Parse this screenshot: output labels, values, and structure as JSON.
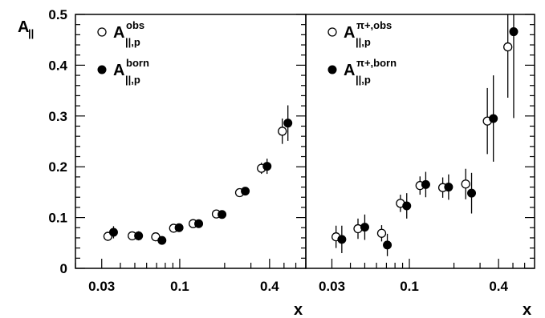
{
  "chart_data": [
    {
      "type": "scatter",
      "panel": "left",
      "title": "",
      "xlabel": "x",
      "ylabel": "A||",
      "x_scale": "log",
      "xlim": [
        0.02,
        0.7
      ],
      "ylim": [
        0,
        0.5
      ],
      "x_ticks": [
        {
          "v": 0.03,
          "label": "0.03"
        },
        {
          "v": 0.1,
          "label": "0.1"
        },
        {
          "v": 0.4,
          "label": "0.4"
        }
      ],
      "y_ticks": [
        {
          "v": 0,
          "label": "0"
        },
        {
          "v": 0.1,
          "label": "0.1"
        },
        {
          "v": 0.2,
          "label": "0.2"
        },
        {
          "v": 0.3,
          "label": "0.3"
        },
        {
          "v": 0.4,
          "label": "0.4"
        },
        {
          "v": 0.5,
          "label": "0.5"
        }
      ],
      "legend_position": "top-left",
      "series": [
        {
          "name": "A||,p obs",
          "legend_main": "A",
          "legend_sub": "||,p",
          "legend_sup": "obs",
          "marker": "open-circle",
          "points": [
            {
              "x": 0.033,
              "y": 0.063,
              "err": 0.009
            },
            {
              "x": 0.048,
              "y": 0.064,
              "err": 0.007
            },
            {
              "x": 0.069,
              "y": 0.062,
              "err": 0.007
            },
            {
              "x": 0.091,
              "y": 0.079,
              "err": 0.007
            },
            {
              "x": 0.123,
              "y": 0.088,
              "err": 0.007
            },
            {
              "x": 0.176,
              "y": 0.107,
              "err": 0.007
            },
            {
              "x": 0.252,
              "y": 0.149,
              "err": 0.008
            },
            {
              "x": 0.353,
              "y": 0.197,
              "err": 0.011
            },
            {
              "x": 0.487,
              "y": 0.27,
              "err": 0.025
            }
          ]
        },
        {
          "name": "A||,p born",
          "legend_main": "A",
          "legend_sub": "||,p",
          "legend_sup": "born",
          "marker": "filled-circle",
          "points": [
            {
              "x": 0.036,
              "y": 0.071,
              "err": 0.012
            },
            {
              "x": 0.053,
              "y": 0.064,
              "err": 0.009
            },
            {
              "x": 0.076,
              "y": 0.055,
              "err": 0.007
            },
            {
              "x": 0.099,
              "y": 0.08,
              "err": 0.007
            },
            {
              "x": 0.134,
              "y": 0.088,
              "err": 0.007
            },
            {
              "x": 0.192,
              "y": 0.106,
              "err": 0.007
            },
            {
              "x": 0.275,
              "y": 0.152,
              "err": 0.008
            },
            {
              "x": 0.385,
              "y": 0.201,
              "err": 0.015
            },
            {
              "x": 0.531,
              "y": 0.286,
              "err": 0.035
            }
          ]
        }
      ]
    },
    {
      "type": "scatter",
      "panel": "right",
      "title": "",
      "xlabel": "x",
      "ylabel": "",
      "x_scale": "log",
      "xlim": [
        0.02,
        0.7
      ],
      "ylim": [
        0,
        0.5
      ],
      "x_ticks": [
        {
          "v": 0.03,
          "label": "0.03"
        },
        {
          "v": 0.1,
          "label": "0.1"
        },
        {
          "v": 0.4,
          "label": "0.4"
        }
      ],
      "y_ticks": [],
      "legend_position": "top-left",
      "series": [
        {
          "name": "A||,p π+,obs",
          "legend_main": "A",
          "legend_sub": "||,p",
          "legend_sup": "π+,obs",
          "marker": "open-circle",
          "points": [
            {
              "x": 0.032,
              "y": 0.062,
              "err": 0.022
            },
            {
              "x": 0.045,
              "y": 0.078,
              "err": 0.02
            },
            {
              "x": 0.065,
              "y": 0.069,
              "err": 0.016
            },
            {
              "x": 0.087,
              "y": 0.128,
              "err": 0.017
            },
            {
              "x": 0.118,
              "y": 0.163,
              "err": 0.018
            },
            {
              "x": 0.168,
              "y": 0.159,
              "err": 0.02
            },
            {
              "x": 0.24,
              "y": 0.166,
              "err": 0.03
            },
            {
              "x": 0.336,
              "y": 0.29,
              "err": 0.065
            },
            {
              "x": 0.462,
              "y": 0.436,
              "err": 0.1
            }
          ]
        },
        {
          "name": "A||,p π+,born",
          "legend_main": "A",
          "legend_sub": "||,p",
          "legend_sup": "π+,born",
          "marker": "filled-circle",
          "points": [
            {
              "x": 0.035,
              "y": 0.057,
              "err": 0.027
            },
            {
              "x": 0.05,
              "y": 0.081,
              "err": 0.025
            },
            {
              "x": 0.071,
              "y": 0.046,
              "err": 0.022
            },
            {
              "x": 0.096,
              "y": 0.123,
              "err": 0.025
            },
            {
              "x": 0.129,
              "y": 0.165,
              "err": 0.025
            },
            {
              "x": 0.184,
              "y": 0.16,
              "err": 0.025
            },
            {
              "x": 0.263,
              "y": 0.148,
              "err": 0.04
            },
            {
              "x": 0.369,
              "y": 0.295,
              "err": 0.085
            },
            {
              "x": 0.506,
              "y": 0.466,
              "err": 0.17
            }
          ]
        }
      ]
    }
  ]
}
